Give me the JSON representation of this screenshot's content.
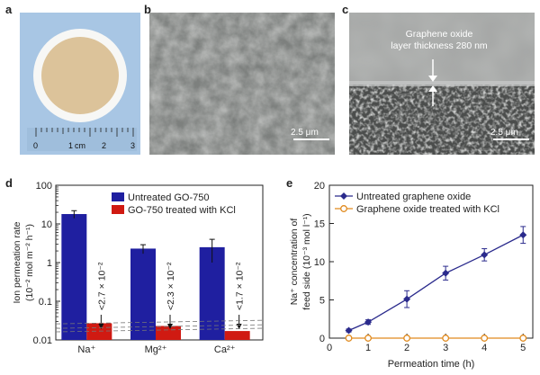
{
  "panels": {
    "a": "a",
    "b": "b",
    "c": "c",
    "d": "d",
    "e": "e"
  },
  "panel_a": {
    "ruler_ticks": [
      "0",
      "1",
      "cm",
      "2",
      "3"
    ]
  },
  "panel_b": {
    "scale_bar": "2.5 μm"
  },
  "panel_c": {
    "annotation_line1": "Graphene oxide",
    "annotation_line2": "layer thickness 280 nm",
    "scale_bar": "2.5 μm"
  },
  "colors": {
    "untreated_bar": "#1f1fa0",
    "treated_bar": "#d01a12",
    "line_untreated": "#2a2a8c",
    "line_treated": "#e08a1e"
  },
  "chart_data": [
    {
      "type": "bar",
      "panel": "d",
      "categories": [
        "Na+",
        "Mg2+",
        "Ca2+"
      ],
      "series": [
        {
          "name": "Untreated GO-750",
          "values": [
            18,
            2.3,
            2.5
          ],
          "errors": [
            4,
            0.6,
            1.5
          ]
        },
        {
          "name": "GO-750 treated with KCl",
          "values": [
            0.027,
            0.023,
            0.017
          ]
        }
      ],
      "bar_labels": [
        "<2.7 × 10⁻²",
        "<2.3 × 10⁻²",
        "<1.7 × 10⁻²"
      ],
      "ylabel_line1": "Ion permeation rate",
      "ylabel_line2": "(10⁻² mol m⁻² h⁻¹)",
      "yscale": "log",
      "ylim": [
        0.01,
        100
      ],
      "yticks": [
        "0.01",
        "0.1",
        "1",
        "10",
        "100"
      ],
      "xtick_labels": [
        "Na⁺",
        "Mg²⁺",
        "Ca²⁺"
      ],
      "legend_position": "top-right"
    },
    {
      "type": "line",
      "panel": "e",
      "series": [
        {
          "name": "Untreated graphene oxide",
          "x": [
            0.5,
            1,
            2,
            3,
            4,
            5
          ],
          "y": [
            1.0,
            2.1,
            5.1,
            8.5,
            10.9,
            13.5
          ],
          "errors": [
            0.2,
            0.3,
            1.1,
            0.9,
            0.8,
            1.1
          ]
        },
        {
          "name": "Graphene oxide treated with KCl",
          "x": [
            0.5,
            1,
            2,
            3,
            4,
            5
          ],
          "y": [
            0,
            0,
            0,
            0,
            0,
            0
          ]
        }
      ],
      "xlabel": "Permeation time (h)",
      "ylabel_line1": "Na⁺ concentration of",
      "ylabel_line2": "feed side (10⁻³ mol l⁻¹)",
      "xlim": [
        0,
        5.25
      ],
      "ylim": [
        0,
        20
      ],
      "xticks": [
        "0",
        "1",
        "2",
        "3",
        "4",
        "5"
      ],
      "yticks": [
        "0",
        "5",
        "10",
        "15",
        "20"
      ],
      "legend_position": "top-left"
    }
  ]
}
